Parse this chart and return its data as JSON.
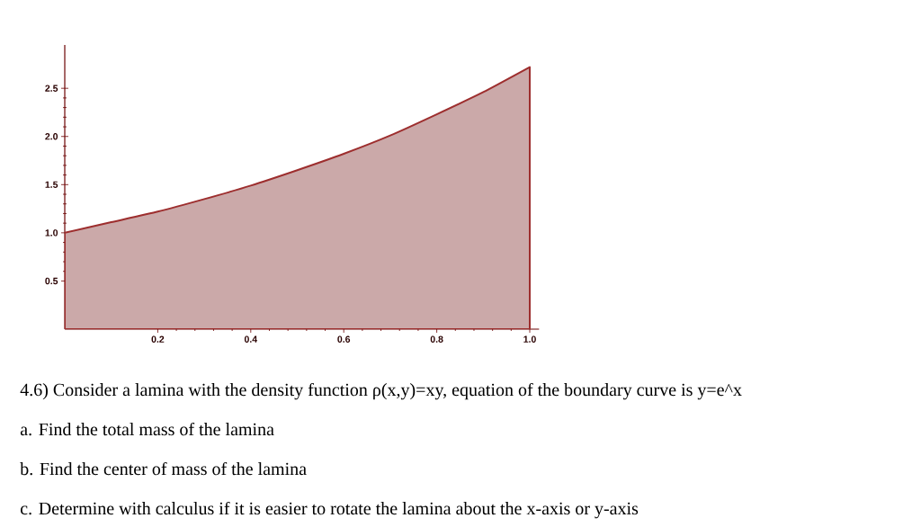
{
  "chart_data": {
    "type": "area",
    "x": [
      0,
      0.1,
      0.2,
      0.3,
      0.4,
      0.5,
      0.6,
      0.7,
      0.8,
      0.9,
      1.0
    ],
    "series": [
      {
        "color": "#cba9a9",
        "values": [
          1.0,
          1.11,
          1.22,
          1.35,
          1.49,
          1.65,
          1.82,
          2.01,
          2.23,
          2.46,
          2.72
        ]
      }
    ],
    "xlim": [
      0,
      1.02
    ],
    "ylim": [
      0,
      2.95
    ],
    "xticks": [
      0.2,
      0.4,
      0.6,
      0.8,
      {
        "value": 1,
        "label": "1.0"
      }
    ],
    "yticks": [
      0.5,
      {
        "value": 1,
        "label": "1.0"
      },
      1.5,
      {
        "value": 2,
        "label": "2.0"
      },
      2.5
    ],
    "grid": false,
    "annotations": [
      "4.6) Consider a lamina with the density function ρ(x,y)=xy, equation of the boundary curve is y=e^x",
      "a. Find the total mass of the lamina",
      "b. Find the center of mass of the lamina",
      "c. Determine with calculus if it is easier to rotate the lamina about the x-axis or y-axis"
    ]
  }
}
